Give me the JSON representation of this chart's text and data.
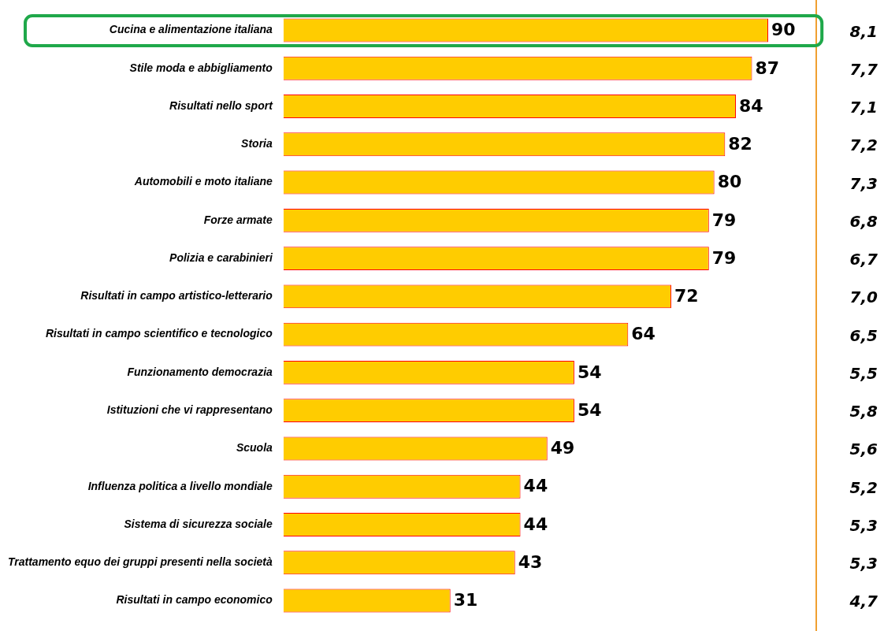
{
  "chart_data": [
    {
      "type": "bar",
      "orientation": "horizontal",
      "categories": [
        "Cucina e alimentazione italiana",
        "Stile moda e abbigliamento",
        "Risultati nello sport",
        "Storia",
        "Automobili e moto italiane",
        "Forze armate",
        "Polizia e carabinieri",
        "Risultati in campo artistico-letterario",
        "Risultati in campo scientifico e tecnologico",
        "Funzionamento democrazia",
        "Istituzioni che vi rappresentano",
        "Scuola",
        "Influenza politica a livello mondiale",
        "Sistema di sicurezza sociale",
        "Trattamento equo dei gruppi presenti nella società",
        "Risultati in campo economico"
      ],
      "values": [
        90,
        87,
        84,
        82,
        80,
        79,
        79,
        72,
        64,
        54,
        54,
        49,
        44,
        44,
        43,
        31
      ],
      "color": "#ffcc00",
      "data_labels": true,
      "tick_labels": "y"
    },
    {
      "type": "other",
      "values": [
        8.1,
        7.7,
        7.1,
        7.2,
        7.3,
        6.8,
        6.7,
        7.0,
        6.5,
        5.5,
        5.8,
        5.6,
        5.2,
        5.3,
        5.3,
        4.7
      ],
      "value_labels": [
        "8,1",
        "7,7",
        "7,1",
        "7,2",
        "7,3",
        "6,8",
        "6,7",
        "7,0",
        "6,5",
        "5,5",
        "5,8",
        "5,6",
        "5,2",
        "5,3",
        "5,3",
        "4,7"
      ]
    }
  ]
}
